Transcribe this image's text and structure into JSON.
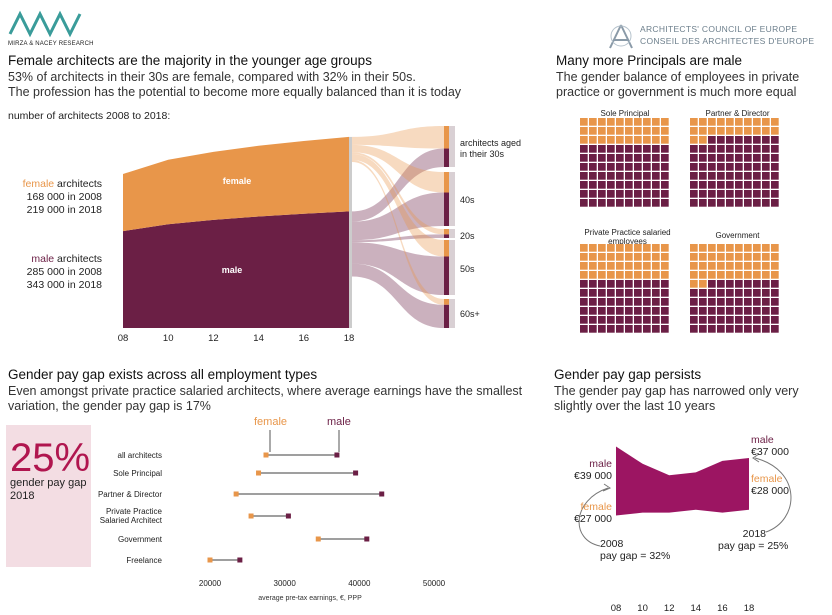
{
  "header": {
    "logo_text": "MIRZA & NACEY RESEARCH",
    "ace_line1": "ARCHITECTS' COUNCIL OF EUROPE",
    "ace_line2": "CONSEIL DES ARCHITECTES D'EUROPE"
  },
  "colors": {
    "female": "#e8964a",
    "male": "#6b1f45",
    "gray": "#888888",
    "pink_box": "#f3dde3",
    "magenta": "#9c1562"
  },
  "panel1": {
    "title": "Female architects are the majority in the younger age groups",
    "sub1": "53% of architects in their 30s are female, compared with 32% in their 50s.",
    "sub2": "The profession has the potential to become more equally balanced than it is today",
    "intro": "number of architects 2008 to 2018:",
    "female_word": "female",
    "female_suffix": " architects",
    "female_2008": "168 000 in 2008",
    "female_2018": "219 000 in 2018",
    "male_word": "male",
    "male_suffix": " architects",
    "male_2008": "285 000 in 2008",
    "male_2018": "343 000 in 2018",
    "band_female": "female",
    "band_male": "male",
    "age_labels": [
      "architects aged in their 30s",
      "40s",
      "20s",
      "50s",
      "60s+"
    ]
  },
  "panel2": {
    "title": "Many more Principals are male",
    "sub1": "The gender balance of employees in private",
    "sub2": "practice or government is much more equal",
    "waffles": [
      {
        "label": "Sole Principal",
        "female": 0.3
      },
      {
        "label": "Partner & Director",
        "female": 0.22
      },
      {
        "label": "Private Practice salaried employees",
        "female": 0.4
      },
      {
        "label": "Government",
        "female": 0.42
      }
    ]
  },
  "panel3": {
    "title": "Gender pay gap exists across all employment types",
    "sub1": "Even amongst private practice salaried architects, where average earnings have the smallest",
    "sub2": "variation, the gender pay gap is 17%",
    "big_pct": "25%",
    "big_caption1": "gender pay gap",
    "big_caption2": "2018",
    "legend_female": "female",
    "legend_male": "male"
  },
  "panel4": {
    "title": "Gender pay gap persists",
    "sub1": "The gender pay gap has narrowed only very",
    "sub2": "slightly over the last 10 years",
    "male_word_l": "male",
    "male_val_l": "€39 000",
    "female_word_l": "female",
    "female_val_l": "€27 000",
    "male_word_r": "male",
    "male_val_r": "€37 000",
    "female_word_r": "female",
    "female_val_r": "€28 000",
    "note_2008_a": "2008",
    "note_2008_b": "pay gap = 32%",
    "note_2018_a": "2018",
    "note_2018_b": "pay gap = 25%"
  },
  "chart_data": [
    {
      "type": "area",
      "title": "number of architects 2008 to 2018",
      "x": [
        8,
        10,
        12,
        14,
        16,
        18
      ],
      "tick_labels": [
        "08",
        "10",
        "12",
        "14",
        "16",
        "18"
      ],
      "series": [
        {
          "name": "male",
          "values": [
            285000,
            305000,
            318000,
            328000,
            336000,
            343000
          ]
        },
        {
          "name": "female",
          "values": [
            168000,
            190000,
            200000,
            208000,
            214000,
            219000
          ]
        }
      ],
      "age_groups": [
        "architects aged in their 30s",
        "40s",
        "20s",
        "50s",
        "60s+"
      ]
    },
    {
      "type": "scatter",
      "title": "Gender pay gap exists across all employment types",
      "xlabel": "average pre-tax earnings, €, PPP",
      "xlim": [
        15000,
        55000
      ],
      "x_ticks": [
        20000,
        30000,
        40000,
        50000
      ],
      "tick_labels": [
        "20000",
        "30000",
        "40000",
        "50000"
      ],
      "categories": [
        "all architects",
        "Sole Principal",
        "Partner & Director",
        "Private Practice Salaried Architect",
        "Government",
        "Freelance"
      ],
      "series": [
        {
          "name": "female",
          "values": [
            27500,
            26500,
            23500,
            25500,
            34500,
            20000
          ]
        },
        {
          "name": "male",
          "values": [
            37000,
            39500,
            43000,
            30500,
            41000,
            24000
          ]
        }
      ]
    },
    {
      "type": "area",
      "title": "Gender pay gap persists",
      "x": [
        8,
        10,
        12,
        14,
        16,
        18
      ],
      "tick_labels": [
        "08",
        "10",
        "12",
        "14",
        "16",
        "18"
      ],
      "series": [
        {
          "name": "male",
          "values": [
            39000,
            36000,
            34000,
            34500,
            36500,
            37000
          ]
        },
        {
          "name": "female",
          "values": [
            27000,
            27500,
            27500,
            28000,
            27500,
            28000
          ]
        }
      ]
    }
  ]
}
